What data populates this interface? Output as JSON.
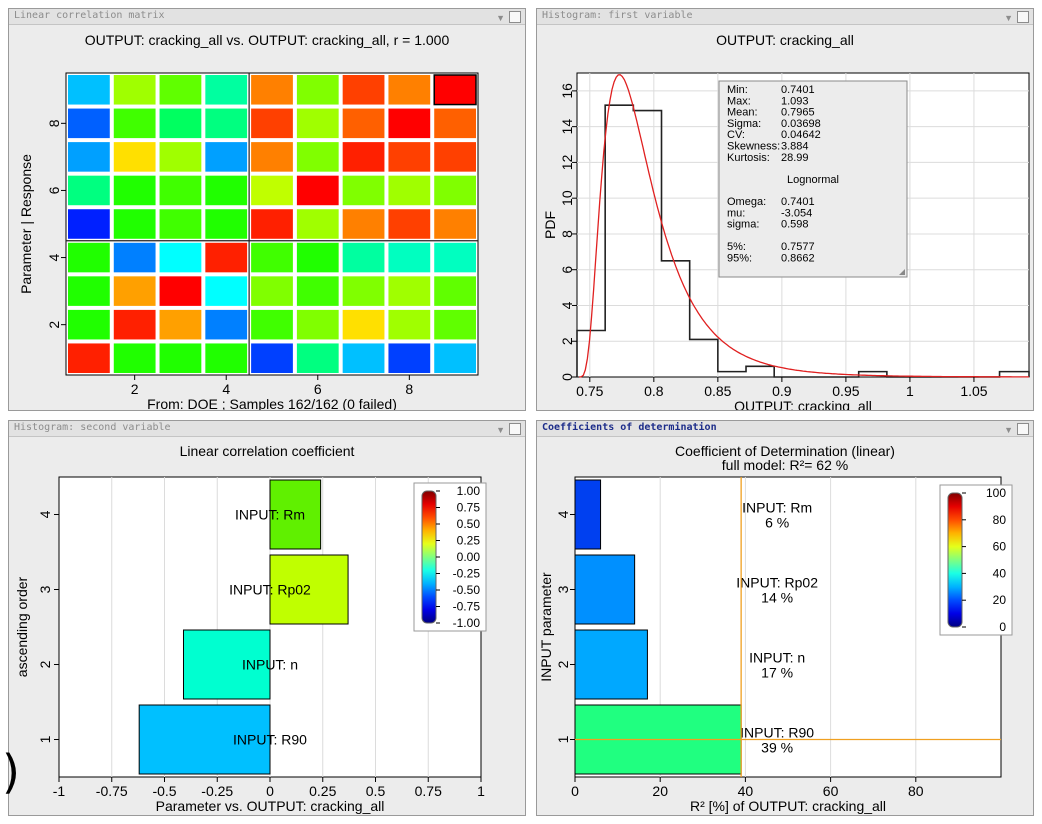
{
  "panels": {
    "corr_matrix": {
      "window_title": "Linear correlation matrix",
      "chart_title": "OUTPUT: cracking_all vs. OUTPUT: cracking_all, r = 1.000",
      "ylabel": "Parameter | Response",
      "xlabel": "From: DOE ; Samples 162/162 (0 failed)"
    },
    "hist1": {
      "window_title": "Histogram: first variable",
      "chart_title": "OUTPUT: cracking_all",
      "ylabel": "PDF",
      "xlabel": "OUTPUT: cracking_all"
    },
    "hist2": {
      "window_title": "Histogram: second variable",
      "chart_title": "Linear correlation coefficient",
      "ylabel": "ascending order",
      "xlabel": "Parameter vs. OUTPUT: cracking_all"
    },
    "cod": {
      "window_title": "Coefficients of determination",
      "chart_title": "Coefficient of Determination (linear)",
      "subtitle": "full model: R²=    62 %",
      "ylabel": "INPUT parameter",
      "xlabel": "R² [%] of OUTPUT: cracking_all"
    }
  },
  "stats_box": {
    "rows": [
      {
        "label": "Min:",
        "value": "0.7401"
      },
      {
        "label": "Max:",
        "value": "1.093"
      },
      {
        "label": "Mean:",
        "value": "0.7965"
      },
      {
        "label": "Sigma:",
        "value": "0.03698"
      },
      {
        "label": "CV:",
        "value": "0.04642"
      },
      {
        "label": "Skewness:",
        "value": "3.884"
      },
      {
        "label": "Kurtosis:",
        "value": "28.99"
      }
    ],
    "dist_name": "Lognormal",
    "params": [
      {
        "label": "Omega:",
        "value": "0.7401"
      },
      {
        "label": "mu:",
        "value": "-3.054"
      },
      {
        "label": "sigma:",
        "value": "0.598"
      }
    ],
    "quantiles": [
      {
        "label": "5%:",
        "value": "0.7577"
      },
      {
        "label": "95%:",
        "value": "0.8662"
      }
    ]
  },
  "chart_data": [
    {
      "type": "heatmap",
      "title": "OUTPUT: cracking_all vs. OUTPUT: cracking_all, r = 1.000",
      "ylabel": "Parameter | Response",
      "xlabel": "From: DOE ; Samples 162/162 (0 failed)",
      "x_ticks": [
        "2",
        "4",
        "6",
        "8"
      ],
      "y_ticks": [
        "2",
        "4",
        "6",
        "8"
      ],
      "cells": [
        [
          "#00c0ff",
          "#a0ff00",
          "#60ff00",
          "#00ffa0",
          "#ff8000",
          "#80ff00",
          "#ff4000",
          "#ff8000",
          "#ff0000"
        ],
        [
          "#0060ff",
          "#40ff00",
          "#00ff60",
          "#00ff80",
          "#ff4000",
          "#a0ff00",
          "#ff6000",
          "#ff0000",
          "#ff6000"
        ],
        [
          "#00a0ff",
          "#ffe000",
          "#a0ff00",
          "#00a0ff",
          "#ff8000",
          "#80ff00",
          "#ff2000",
          "#ff4000",
          "#ff4000"
        ],
        [
          "#00ff80",
          "#20ff00",
          "#40ff00",
          "#20ff00",
          "#c0ff00",
          "#ff0000",
          "#80ff00",
          "#a0ff00",
          "#80ff00"
        ],
        [
          "#0020ff",
          "#20ff00",
          "#40ff00",
          "#20ff00",
          "#ff2000",
          "#a0ff00",
          "#ff8000",
          "#ff4000",
          "#ff8000"
        ],
        [
          "#20ff00",
          "#0080ff",
          "#00ffff",
          "#ff2000",
          "#40ff00",
          "#20ff00",
          "#00ffa0",
          "#00ffc0",
          "#00ffc0"
        ],
        [
          "#20ff00",
          "#ffa000",
          "#ff0000",
          "#00ffff",
          "#80ff00",
          "#40ff00",
          "#80ff00",
          "#a0ff00",
          "#60ff00"
        ],
        [
          "#20ff00",
          "#ff2000",
          "#ffa000",
          "#0080ff",
          "#40ff00",
          "#80ff00",
          "#ffe000",
          "#a0ff00",
          "#60ff00"
        ],
        [
          "#ff2000",
          "#20ff00",
          "#20ff00",
          "#20ff00",
          "#0040ff",
          "#00ff80",
          "#00c0ff",
          "#0040ff",
          "#00c0ff"
        ]
      ]
    },
    {
      "type": "bar",
      "title": "OUTPUT: cracking_all",
      "xlabel": "OUTPUT: cracking_all",
      "ylabel": "PDF",
      "xlim": [
        0.74,
        1.093
      ],
      "ylim": [
        0,
        17
      ],
      "bin_edges": [
        0.74,
        0.762,
        0.784,
        0.806,
        0.828,
        0.85,
        0.872,
        0.894,
        0.916,
        0.938,
        0.96,
        0.982,
        1.004,
        1.026,
        1.048,
        1.07,
        1.093
      ],
      "values": [
        2.6,
        15.2,
        14.9,
        6.5,
        2.1,
        0.3,
        0.6,
        0.0,
        0.0,
        0.0,
        0.3,
        0.0,
        0.0,
        0.0,
        0.0,
        0.3
      ],
      "fit_curve": {
        "name": "Lognormal",
        "omega": 0.7401,
        "mu": -3.054,
        "sigma": 0.598
      },
      "x_ticks": [
        "0.75",
        "0.8",
        "0.85",
        "0.9",
        "0.95",
        "1",
        "1.05"
      ],
      "y_ticks": [
        "0",
        "2",
        "4",
        "6",
        "8",
        "10",
        "12",
        "14",
        "16"
      ]
    },
    {
      "type": "bar",
      "title": "Linear correlation coefficient",
      "xlabel": "Parameter vs. OUTPUT: cracking_all",
      "ylabel": "ascending order",
      "xlim": [
        -1,
        1
      ],
      "categories": [
        "INPUT: R90",
        "INPUT: n",
        "INPUT: Rp02",
        "INPUT: Rm"
      ],
      "values": [
        -0.62,
        -0.41,
        0.37,
        0.24
      ],
      "colors": [
        "#00c0ff",
        "#00ffd0",
        "#c0ff00",
        "#60f000"
      ],
      "x_ticks": [
        "-1",
        "-0.75",
        "-0.5",
        "-0.25",
        "0",
        "0.25",
        "0.5",
        "0.75",
        "1"
      ],
      "y_ticks": [
        "1",
        "2",
        "3",
        "4"
      ],
      "colorbar": {
        "ticks": [
          "1.00",
          "0.75",
          "0.50",
          "0.25",
          "0.00",
          "-0.25",
          "-0.50",
          "-0.75",
          "-1.00"
        ]
      }
    },
    {
      "type": "bar",
      "title": "Coefficient of Determination (linear)",
      "subtitle": "full model: R²=    62 %",
      "xlabel": "R² [%] of OUTPUT: cracking_all",
      "ylabel": "INPUT parameter",
      "xlim": [
        0,
        100
      ],
      "categories": [
        "INPUT: R90",
        "INPUT: n",
        "INPUT: Rp02",
        "INPUT: Rm"
      ],
      "values": [
        39,
        17,
        14,
        6
      ],
      "value_labels": [
        "39 %",
        "17 %",
        "14 %",
        "6 %"
      ],
      "colors": [
        "#20ff80",
        "#00a8ff",
        "#0090ff",
        "#0040f0"
      ],
      "full_model": 62,
      "x_ticks": [
        "0",
        "20",
        "40",
        "60",
        "80"
      ],
      "y_ticks": [
        "1",
        "2",
        "3",
        "4"
      ],
      "colorbar": {
        "ticks": [
          "100",
          "80",
          "60",
          "40",
          "20",
          "0"
        ]
      }
    }
  ],
  "misc": {
    "paren": ")"
  }
}
